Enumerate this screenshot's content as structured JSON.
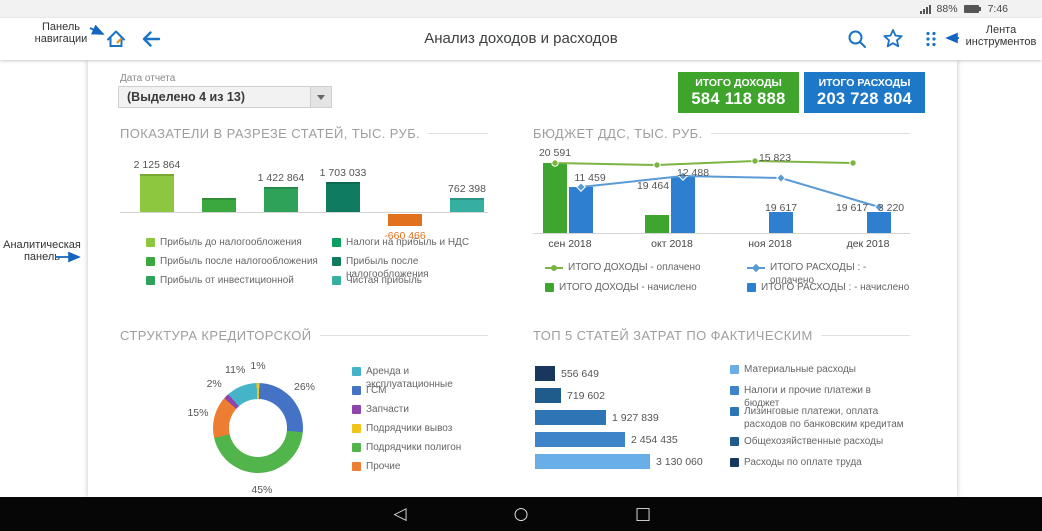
{
  "theme": {
    "accent_blue": "#1a73c7",
    "callout_arrow": "#1565c0",
    "income_green": "#3fa42c",
    "expense_blue": "#1e78c8"
  },
  "callouts": {
    "nav_panel": {
      "line1": "Панель",
      "line2": "навигации"
    },
    "toolbar": {
      "line1": "Лента",
      "line2": "инструментов"
    },
    "analytic_panel": {
      "line1": "Аналитическая",
      "line2": "панель"
    }
  },
  "status_bar": {
    "icons": [
      "signal-icon",
      "battery-icon"
    ],
    "battery_percent": "88%",
    "time": "7:46"
  },
  "app_bar": {
    "title": "Анализ доходов и расходов",
    "left_icons": [
      "home-icon",
      "back-arrow-icon"
    ],
    "right_icons": [
      "search-icon",
      "star-icon",
      "more-icon"
    ]
  },
  "report_filter": {
    "label": "Дата отчета",
    "value": "(Выделено 4 из 13)"
  },
  "totals": {
    "income": {
      "label": "ИТОГО ДОХОДЫ",
      "value": "584 118 888",
      "color": "#3fa42c"
    },
    "expenses": {
      "label": "ИТОГО РАСХОДЫ",
      "value": "203 728 804",
      "color": "#1e78c8"
    }
  },
  "chart_data": [
    {
      "id": "indicators",
      "type": "bar",
      "title": "ПОКАЗАТЕЛИ В РАЗРЕЗЕ СТАТЕЙ, ТЫС. РУБ.",
      "values": [
        2125864,
        null,
        1422864,
        1703033,
        -660466,
        762398
      ],
      "value_labels": [
        "2 125 864",
        "",
        "1 422 864",
        "1 703 033",
        "-660 466",
        "762 398"
      ],
      "colors": [
        "#8dc63f",
        "#3aa83f",
        "#2fa25a",
        "#0f7b5f",
        "#e2711d",
        "#35b0a0"
      ],
      "negative_label_color": "#e2711d",
      "legend": [
        {
          "label": "Прибыль до налогообложения",
          "color": "#8dc63f"
        },
        {
          "label": "Прибыль после налогообложения",
          "color": "#3aa83f"
        },
        {
          "label": "Прибыль от инвестиционной",
          "color": "#2fa25a"
        },
        {
          "label": "Налоги на прибыль и НДС",
          "color": "#0aa05f"
        },
        {
          "label": "Прибыль после налогообложения",
          "color": "#0f7b5f"
        },
        {
          "label": "Чистая прибыль",
          "color": "#35b0a0"
        }
      ]
    },
    {
      "id": "dds-budget",
      "type": "combo",
      "title": "БЮДЖЕТ ДДС, ТЫС. РУБ.",
      "categories": [
        "сен 2018",
        "окт 2018",
        "ноя 2018",
        "дек 2018"
      ],
      "value_labels_by_category": [
        [
          "20 591",
          "11 459"
        ],
        [
          "19 464",
          "12 488"
        ],
        [
          "15 823",
          "19 617"
        ],
        [
          "19 617",
          "3 220"
        ]
      ],
      "series": [
        {
          "name": "ИТОГО ДОХОДЫ - оплачено",
          "kind": "line",
          "marker": "circle",
          "color": "#7cb342",
          "values": [
            20591,
            null,
            15823,
            19617
          ]
        },
        {
          "name": "ИТОГО РАСХОДЫ : - оплачено",
          "kind": "line",
          "marker": "diamond",
          "color": "#5b9bd5",
          "values": [
            11459,
            12488,
            null,
            3220
          ]
        },
        {
          "name": "ИТОГО ДОХОДЫ - начислено",
          "kind": "bar",
          "color": "#3ea52f",
          "values": [
            20591,
            19464,
            null,
            null
          ]
        },
        {
          "name": "ИТОГО РАСХОДЫ : - начислено",
          "kind": "bar",
          "color": "#2e7fd0",
          "values": [
            11459,
            12488,
            19617,
            3220
          ]
        }
      ]
    },
    {
      "id": "creditor-structure",
      "type": "pie",
      "title": "СТРУКТУРА КРЕДИТОРСКОЙ",
      "segments": [
        {
          "label": "Подрядчики вывоз",
          "pct": 1,
          "color": "#f0c419"
        },
        {
          "label": "ГСМ",
          "pct": 26,
          "color": "#4472c4"
        },
        {
          "label": "Подрядчики полигон",
          "pct": 45,
          "color": "#52b54b"
        },
        {
          "label": "Прочие",
          "pct": 15,
          "color": "#ed7d31"
        },
        {
          "label": "Запчасти",
          "pct": 2,
          "color": "#8e44ad"
        },
        {
          "label": "Аренда и эксплуатационные",
          "pct": 11,
          "color": "#46b4c8"
        }
      ],
      "legend": [
        {
          "label": "Аренда и эксплуатационные",
          "color": "#46b4c8"
        },
        {
          "label": "ГСМ",
          "color": "#4472c4"
        },
        {
          "label": "Запчасти",
          "color": "#8e44ad"
        },
        {
          "label": "Подрядчики вывоз",
          "color": "#f0c419"
        },
        {
          "label": "Подрядчики полигон",
          "color": "#52b54b"
        },
        {
          "label": "Прочие",
          "color": "#ed7d31"
        }
      ]
    },
    {
      "id": "top5-costs",
      "type": "bar-horizontal",
      "title": "ТОП 5 СТАТЕЙ ЗАТРАТ ПО ФАКТИЧЕСКИМ",
      "values": [
        556649,
        719602,
        1927839,
        2454435,
        3130060
      ],
      "value_labels": [
        "556 649",
        "719 602",
        "1 927 839",
        "2 454 435",
        "3 130 060"
      ],
      "colors": [
        "#17375e",
        "#1f5c8b",
        "#2e75b6",
        "#3d85c8",
        "#6aaee8"
      ],
      "legend": [
        {
          "label": "Материальные расходы",
          "color": "#6aaee8"
        },
        {
          "label": "Налоги и прочие платежи в бюджет",
          "color": "#3d85c8"
        },
        {
          "label": "Лизинговые платежи, оплата расходов по банковским кредитам",
          "color": "#2e75b6"
        },
        {
          "label": "Общехозяйственные расходы",
          "color": "#1f5c8b"
        },
        {
          "label": "Расходы по оплате труда",
          "color": "#17375e"
        }
      ]
    }
  ],
  "android_nav": {
    "back": "◁",
    "home": "○",
    "recents": "□"
  }
}
